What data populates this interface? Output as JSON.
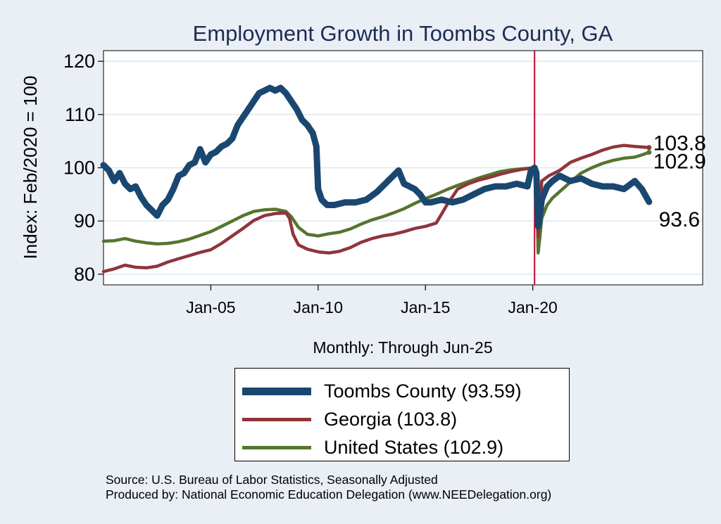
{
  "chart_data": {
    "type": "line",
    "title": "Employment Growth in Toombs  County, GA",
    "ylabel": "Index: Feb/2020 = 100",
    "xlabel": "Monthly: Through Jun-25",
    "ylim": [
      78,
      122
    ],
    "xlim": [
      "2000-01",
      "2027-12"
    ],
    "yticks": [
      80,
      90,
      100,
      110,
      120
    ],
    "xticks": [
      {
        "date": "2005-01",
        "label": "Jan-05"
      },
      {
        "date": "2010-01",
        "label": "Jan-10"
      },
      {
        "date": "2015-01",
        "label": "Jan-15"
      },
      {
        "date": "2020-01",
        "label": "Jan-20"
      }
    ],
    "reference_line": "2020-02",
    "grid": true,
    "series": [
      {
        "name": "Toombs  County",
        "legend_label": "Toombs  County (93.59)",
        "end_label": "93.6",
        "color": "#1a476f",
        "points": [
          [
            "2000-01",
            100.5
          ],
          [
            "2000-04",
            99.5
          ],
          [
            "2000-07",
            97.5
          ],
          [
            "2000-10",
            99.0
          ],
          [
            "2001-01",
            97.0
          ],
          [
            "2001-04",
            96.0
          ],
          [
            "2001-07",
            96.5
          ],
          [
            "2001-10",
            94.5
          ],
          [
            "2002-01",
            93.0
          ],
          [
            "2002-04",
            92.0
          ],
          [
            "2002-07",
            91.0
          ],
          [
            "2002-10",
            93.0
          ],
          [
            "2003-01",
            94.0
          ],
          [
            "2003-04",
            96.0
          ],
          [
            "2003-07",
            98.5
          ],
          [
            "2003-10",
            99.0
          ],
          [
            "2004-01",
            100.5
          ],
          [
            "2004-04",
            101.0
          ],
          [
            "2004-07",
            103.5
          ],
          [
            "2004-10",
            101.0
          ],
          [
            "2005-01",
            102.5
          ],
          [
            "2005-04",
            103.0
          ],
          [
            "2005-07",
            104.0
          ],
          [
            "2005-10",
            104.5
          ],
          [
            "2006-01",
            105.5
          ],
          [
            "2006-04",
            108.0
          ],
          [
            "2006-07",
            109.5
          ],
          [
            "2006-10",
            111.0
          ],
          [
            "2007-01",
            112.5
          ],
          [
            "2007-04",
            114.0
          ],
          [
            "2007-07",
            114.5
          ],
          [
            "2007-10",
            115.0
          ],
          [
            "2008-01",
            114.5
          ],
          [
            "2008-04",
            115.0
          ],
          [
            "2008-07",
            114.0
          ],
          [
            "2008-10",
            112.5
          ],
          [
            "2009-01",
            111.0
          ],
          [
            "2009-04",
            109.0
          ],
          [
            "2009-07",
            108.0
          ],
          [
            "2009-10",
            106.5
          ],
          [
            "2009-12",
            104.0
          ],
          [
            "2010-01",
            96.0
          ],
          [
            "2010-03",
            94.0
          ],
          [
            "2010-06",
            93.0
          ],
          [
            "2010-10",
            93.0
          ],
          [
            "2011-04",
            93.5
          ],
          [
            "2011-10",
            93.5
          ],
          [
            "2012-04",
            94.0
          ],
          [
            "2012-10",
            95.5
          ],
          [
            "2013-04",
            97.5
          ],
          [
            "2013-07",
            98.5
          ],
          [
            "2013-10",
            99.5
          ],
          [
            "2014-01",
            97.0
          ],
          [
            "2014-04",
            96.5
          ],
          [
            "2014-07",
            96.0
          ],
          [
            "2014-10",
            95.0
          ],
          [
            "2015-01",
            93.5
          ],
          [
            "2015-04",
            93.5
          ],
          [
            "2015-10",
            94.0
          ],
          [
            "2016-04",
            93.5
          ],
          [
            "2016-10",
            94.0
          ],
          [
            "2017-04",
            95.0
          ],
          [
            "2017-10",
            96.0
          ],
          [
            "2018-04",
            96.5
          ],
          [
            "2018-10",
            96.5
          ],
          [
            "2019-04",
            97.0
          ],
          [
            "2019-10",
            96.5
          ],
          [
            "2019-12",
            99.5
          ],
          [
            "2020-02",
            100.0
          ],
          [
            "2020-03",
            99.0
          ],
          [
            "2020-04",
            89.0
          ],
          [
            "2020-05",
            91.0
          ],
          [
            "2020-06",
            94.0
          ],
          [
            "2020-09",
            96.5
          ],
          [
            "2020-12",
            97.5
          ],
          [
            "2021-04",
            98.5
          ],
          [
            "2021-10",
            97.5
          ],
          [
            "2022-04",
            98.0
          ],
          [
            "2022-10",
            97.0
          ],
          [
            "2023-04",
            96.5
          ],
          [
            "2023-10",
            96.5
          ],
          [
            "2024-04",
            96.0
          ],
          [
            "2024-10",
            97.5
          ],
          [
            "2025-02",
            96.0
          ],
          [
            "2025-06",
            93.59
          ]
        ]
      },
      {
        "name": "Georgia",
        "legend_label": "Georgia (103.8)",
        "end_label": "103.8",
        "color": "#90353b",
        "points": [
          [
            "2000-01",
            80.5
          ],
          [
            "2000-07",
            81.0
          ],
          [
            "2001-01",
            81.7
          ],
          [
            "2001-07",
            81.3
          ],
          [
            "2002-01",
            81.2
          ],
          [
            "2002-07",
            81.5
          ],
          [
            "2003-01",
            82.3
          ],
          [
            "2003-07",
            82.9
          ],
          [
            "2004-01",
            83.5
          ],
          [
            "2004-07",
            84.1
          ],
          [
            "2005-01",
            84.6
          ],
          [
            "2005-07",
            85.8
          ],
          [
            "2006-01",
            87.2
          ],
          [
            "2006-07",
            88.6
          ],
          [
            "2007-01",
            90.1
          ],
          [
            "2007-07",
            91.0
          ],
          [
            "2008-01",
            91.4
          ],
          [
            "2008-07",
            91.5
          ],
          [
            "2008-09",
            90.5
          ],
          [
            "2008-11",
            87.5
          ],
          [
            "2009-02",
            85.5
          ],
          [
            "2009-07",
            84.7
          ],
          [
            "2010-01",
            84.2
          ],
          [
            "2010-07",
            84.0
          ],
          [
            "2011-01",
            84.3
          ],
          [
            "2011-07",
            85.0
          ],
          [
            "2012-01",
            86.0
          ],
          [
            "2012-07",
            86.7
          ],
          [
            "2013-01",
            87.2
          ],
          [
            "2013-07",
            87.5
          ],
          [
            "2014-01",
            88.0
          ],
          [
            "2014-07",
            88.6
          ],
          [
            "2015-01",
            89.0
          ],
          [
            "2015-07",
            89.6
          ],
          [
            "2016-01",
            93.0
          ],
          [
            "2016-07",
            96.0
          ],
          [
            "2017-01",
            97.0
          ],
          [
            "2017-07",
            97.7
          ],
          [
            "2018-01",
            98.2
          ],
          [
            "2018-07",
            98.8
          ],
          [
            "2019-01",
            99.3
          ],
          [
            "2019-07",
            99.7
          ],
          [
            "2020-02",
            100.0
          ],
          [
            "2020-03",
            99.5
          ],
          [
            "2020-04",
            87.0
          ],
          [
            "2020-05",
            90.5
          ],
          [
            "2020-06",
            97.5
          ],
          [
            "2020-10",
            98.5
          ],
          [
            "2021-04",
            99.5
          ],
          [
            "2021-10",
            101.0
          ],
          [
            "2022-04",
            101.8
          ],
          [
            "2022-10",
            102.5
          ],
          [
            "2023-04",
            103.3
          ],
          [
            "2023-10",
            103.9
          ],
          [
            "2024-04",
            104.2
          ],
          [
            "2024-10",
            104.0
          ],
          [
            "2025-06",
            103.8
          ]
        ]
      },
      {
        "name": "United States",
        "legend_label": "United States (102.9)",
        "end_label": "102.9",
        "color": "#55752f",
        "points": [
          [
            "2000-01",
            86.2
          ],
          [
            "2000-07",
            86.3
          ],
          [
            "2001-01",
            86.7
          ],
          [
            "2001-07",
            86.2
          ],
          [
            "2002-01",
            85.9
          ],
          [
            "2002-07",
            85.7
          ],
          [
            "2003-01",
            85.8
          ],
          [
            "2003-07",
            86.1
          ],
          [
            "2004-01",
            86.6
          ],
          [
            "2004-07",
            87.3
          ],
          [
            "2005-01",
            88.0
          ],
          [
            "2005-07",
            89.0
          ],
          [
            "2006-01",
            90.0
          ],
          [
            "2006-07",
            91.0
          ],
          [
            "2007-01",
            91.8
          ],
          [
            "2007-07",
            92.1
          ],
          [
            "2008-01",
            92.2
          ],
          [
            "2008-07",
            91.8
          ],
          [
            "2008-10",
            90.8
          ],
          [
            "2009-02",
            88.8
          ],
          [
            "2009-07",
            87.5
          ],
          [
            "2010-01",
            87.2
          ],
          [
            "2010-07",
            87.6
          ],
          [
            "2011-01",
            87.9
          ],
          [
            "2011-07",
            88.5
          ],
          [
            "2012-01",
            89.4
          ],
          [
            "2012-07",
            90.2
          ],
          [
            "2013-01",
            90.8
          ],
          [
            "2013-07",
            91.5
          ],
          [
            "2014-01",
            92.3
          ],
          [
            "2014-07",
            93.3
          ],
          [
            "2015-01",
            94.2
          ],
          [
            "2015-07",
            95.0
          ],
          [
            "2016-01",
            95.9
          ],
          [
            "2016-07",
            96.7
          ],
          [
            "2017-01",
            97.4
          ],
          [
            "2017-07",
            98.1
          ],
          [
            "2018-01",
            98.7
          ],
          [
            "2018-07",
            99.3
          ],
          [
            "2019-01",
            99.6
          ],
          [
            "2019-07",
            99.8
          ],
          [
            "2020-02",
            100.0
          ],
          [
            "2020-03",
            99.0
          ],
          [
            "2020-04",
            84.0
          ],
          [
            "2020-05",
            87.0
          ],
          [
            "2020-06",
            90.5
          ],
          [
            "2020-09",
            93.0
          ],
          [
            "2020-12",
            94.3
          ],
          [
            "2021-04",
            95.5
          ],
          [
            "2021-10",
            97.3
          ],
          [
            "2022-04",
            99.0
          ],
          [
            "2022-10",
            100.0
          ],
          [
            "2023-04",
            100.8
          ],
          [
            "2023-10",
            101.4
          ],
          [
            "2024-04",
            101.8
          ],
          [
            "2024-10",
            102.0
          ],
          [
            "2025-02",
            102.4
          ],
          [
            "2025-06",
            102.9
          ]
        ]
      }
    ]
  },
  "source_lines": [
    "Source: U.S. Bureau of Labor Statistics, Seasonally Adjusted",
    "Produced by: National Economic Education Delegation (www.NEEDelegation.org)"
  ]
}
